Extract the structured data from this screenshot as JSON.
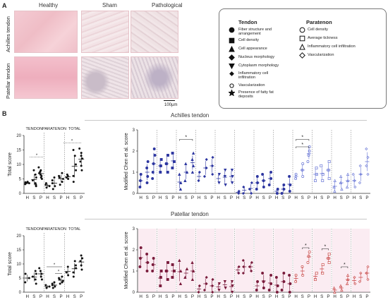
{
  "panel_a": {
    "letter": "A",
    "columns": [
      "Healthy",
      "Sham",
      "Pathological"
    ],
    "rows": [
      "Achilles tendon",
      "Patellar tendon"
    ],
    "scalebar": "100µm"
  },
  "legend": {
    "tendon_title": "Tendon",
    "tendon_items": [
      {
        "symbol": "circle-filled",
        "label": "Fiber structure and\narrangement"
      },
      {
        "symbol": "square-filled",
        "label": "Cell density"
      },
      {
        "symbol": "triangle-filled",
        "label": "Cell appearance"
      },
      {
        "symbol": "diamond-filled",
        "label": "Nucleus morphology"
      },
      {
        "symbol": "triangle-down-filled",
        "label": "Cytoplasm morphology"
      },
      {
        "symbol": "diamond-small-filled",
        "label": "Inflammatory cell\ninfiltration"
      },
      {
        "symbol": "circle-open-small",
        "label": "Vascularization"
      },
      {
        "symbol": "star-filled",
        "label": "Presence of fatty fat\ndeposits"
      }
    ],
    "paratenon_title": "Paratenon",
    "paratenon_items": [
      {
        "symbol": "circle-open",
        "label": "Cell density"
      },
      {
        "symbol": "square-open",
        "label": "Average tickness"
      },
      {
        "symbol": "triangle-open",
        "label": "Inflammatory cell infiltration"
      },
      {
        "symbol": "diamond-open",
        "label": "Vascularization"
      }
    ]
  },
  "panel_b": {
    "letter": "B",
    "achilles_title": "Achilles tendon",
    "patellar_title": "Patellar tendon",
    "total_ylabel": "Total score",
    "modified_ylabel": "Modified Chen et al. score",
    "group_headers": [
      "TENDON",
      "PARATENON",
      "TOTAL"
    ],
    "groups": [
      "H",
      "S",
      "P"
    ],
    "sig_marker": "*"
  },
  "chart_data": [
    {
      "type": "scatter",
      "name": "Achilles tendon total score",
      "ylabel": "Total score",
      "ylim": [
        0,
        20
      ],
      "yticks": [
        0,
        5,
        10,
        15,
        20
      ],
      "panels": [
        "TENDON",
        "PARATENON",
        "TOTAL"
      ],
      "categories": [
        "H",
        "S",
        "P"
      ],
      "series": [
        {
          "panel": "TENDON",
          "H": [
            3.2,
            3.5,
            3.8,
            4.0,
            3.6
          ],
          "S": [
            2.5,
            3.5,
            4.5,
            5.5,
            6.5,
            8.0,
            3.0
          ],
          "P": [
            5.0,
            5.5,
            6.0,
            6.5,
            7.0,
            7.5,
            8.0,
            9.0
          ]
        },
        {
          "panel": "PARATENON",
          "H": [
            2.0,
            2.5,
            3.0,
            3.5
          ],
          "S": [
            1.5,
            2.5,
            3.5,
            4.5,
            5.5
          ],
          "P": [
            3.0,
            4.0,
            5.0,
            5.5,
            6.0,
            7.0
          ]
        },
        {
          "panel": "TOTAL",
          "H": [
            5.0,
            5.5,
            6.0,
            6.5
          ],
          "S": [
            4.0,
            6.0,
            8.0,
            10.0,
            13.0,
            15.0
          ],
          "P": [
            8.0,
            9.5,
            11.0,
            12.0,
            13.0,
            14.0,
            15.5
          ]
        }
      ]
    },
    {
      "type": "scatter",
      "name": "Achilles tendon modified Chen et al. score",
      "ylabel": "Modified Chen et al. score",
      "ylim": [
        0,
        3
      ],
      "yticks": [
        0,
        1,
        2,
        3
      ],
      "categories": [
        "H",
        "S",
        "P"
      ],
      "groups_count": 12,
      "series": [
        {
          "H": [
            0.3,
            0.6,
            0.9
          ],
          "S": [
            0.5,
            0.8,
            1.2,
            1.5
          ],
          "P": [
            0.7,
            1.0,
            1.4,
            1.8,
            2.1
          ]
        },
        {
          "H": [
            1.0,
            1.3,
            1.6
          ],
          "S": [
            1.0,
            1.4,
            1.8
          ],
          "P": [
            1.2,
            1.5,
            1.9
          ]
        },
        {
          "H": [
            0.2,
            0.5,
            0.9
          ],
          "S": [
            0.6,
            1.0,
            1.4
          ],
          "P": [
            1.0,
            1.3,
            1.6,
            1.9
          ]
        },
        {
          "H": [
            0.6,
            1.0
          ],
          "S": [
            0.8,
            1.2,
            1.6
          ],
          "P": [
            0.9,
            1.3,
            1.7
          ]
        },
        {
          "H": [
            0.5,
            0.9
          ],
          "S": [
            0.4,
            0.8,
            1.1
          ],
          "P": [
            0.5,
            0.8,
            1.1
          ]
        },
        {
          "H": [
            0.0,
            0.1
          ],
          "S": [
            0.0,
            0.3
          ],
          "P": [
            0.0,
            0.2,
            0.5
          ]
        },
        {
          "H": [
            0.2,
            0.5,
            0.8
          ],
          "S": [
            0.3,
            0.6,
            0.9
          ],
          "P": [
            0.4,
            0.7,
            1.0
          ]
        },
        {
          "H": [
            0.0,
            0.2
          ],
          "S": [
            0.0,
            0.2,
            0.4
          ],
          "P": [
            0.1,
            0.4,
            0.8
          ]
        },
        {
          "H": [
            0.7,
            0.9
          ],
          "S": [
            0.8,
            1.1,
            1.4
          ],
          "P": [
            1.5,
            1.8,
            2.0,
            2.2
          ]
        },
        {
          "H": [
            0.6,
            0.9,
            1.2
          ],
          "S": [
            0.6,
            0.9,
            1.3
          ],
          "P": [
            0.7,
            1.1,
            1.5
          ]
        },
        {
          "H": [
            0.1,
            0.3,
            0.6
          ],
          "S": [
            0.2,
            0.5,
            0.8
          ],
          "P": [
            0.3,
            0.6,
            0.9
          ]
        },
        {
          "H": [
            0.3,
            0.6,
            0.9
          ],
          "S": [
            0.5,
            0.9,
            1.3
          ],
          "P": [
            0.9,
            1.3,
            1.7,
            2.1
          ]
        }
      ]
    },
    {
      "type": "scatter",
      "name": "Patellar tendon total score",
      "ylabel": "Total score",
      "ylim": [
        0,
        20
      ],
      "yticks": [
        0,
        5,
        10,
        15,
        20
      ],
      "panels": [
        "TENDON",
        "PARATENON",
        "TOTAL"
      ],
      "categories": [
        "H",
        "S",
        "P"
      ],
      "series": [
        {
          "panel": "TENDON",
          "H": [
            3.5,
            5.0,
            6.5
          ],
          "S": [
            3.0,
            4.5,
            5.5,
            6.5,
            7.5
          ],
          "P": [
            4.5,
            5.5,
            6.5,
            7.5,
            8.5
          ]
        },
        {
          "panel": "PARATENON",
          "H": [
            1.5,
            2.0,
            2.5
          ],
          "S": [
            1.5,
            2.0,
            2.5,
            3.0,
            3.5
          ],
          "P": [
            3.0,
            3.5,
            4.0,
            4.5,
            5.0,
            5.5
          ]
        },
        {
          "panel": "TOTAL",
          "H": [
            6.0,
            7.0,
            9.0
          ],
          "S": [
            5.5,
            7.0,
            8.5,
            9.5,
            11.0
          ],
          "P": [
            8.0,
            9.5,
            11.0,
            12.0,
            13.0
          ]
        }
      ]
    },
    {
      "type": "scatter",
      "name": "Patellar tendon modified Chen et al. score",
      "ylabel": "Modified Chen et al. score",
      "ylim": [
        0,
        3
      ],
      "yticks": [
        0,
        1,
        2,
        3
      ],
      "categories": [
        "H",
        "S",
        "P"
      ],
      "groups_count": 12,
      "series": [
        {
          "H": [
            1.2,
            1.6,
            2.1
          ],
          "S": [
            1.0,
            1.4,
            1.8
          ],
          "P": [
            1.0,
            1.3,
            1.6
          ]
        },
        {
          "H": [
            0.3,
            0.7,
            1.0
          ],
          "S": [
            0.6,
            1.0,
            1.4
          ],
          "P": [
            0.7,
            1.0,
            1.3
          ]
        },
        {
          "H": [
            0.4,
            1.0,
            1.5
          ],
          "S": [
            0.7,
            1.1
          ],
          "P": [
            0.6,
            1.0,
            1.4
          ]
        },
        {
          "H": [
            0.0,
            0.3
          ],
          "S": [
            0.1,
            0.4,
            0.7
          ],
          "P": [
            0.0,
            0.3,
            0.6
          ]
        },
        {
          "H": [
            0.1,
            0.4
          ],
          "S": [
            0.2,
            0.5
          ],
          "P": [
            0.0,
            0.3,
            0.5
          ]
        },
        {
          "H": [
            0.9,
            1.2
          ],
          "S": [
            0.9,
            1.2,
            1.5
          ],
          "P": [
            1.0,
            1.2,
            1.4
          ]
        },
        {
          "H": [
            0.1,
            0.5
          ],
          "S": [
            0.2,
            0.5,
            0.9
          ],
          "P": [
            0.1,
            0.4,
            0.8
          ]
        },
        {
          "H": [
            0.0,
            0.3,
            0.7
          ],
          "S": [
            0.1,
            0.5,
            0.9
          ],
          "P": [
            0.0,
            0.4,
            0.8
          ]
        },
        {
          "H": [
            0.5,
            0.8
          ],
          "S": [
            0.8,
            1.2
          ],
          "P": [
            1.4,
            1.7,
            1.9
          ]
        },
        {
          "H": [
            0.6,
            0.9
          ],
          "S": [
            0.9,
            1.3
          ],
          "P": [
            1.4,
            1.6,
            1.8
          ]
        },
        {
          "H": [
            0.0,
            0.2
          ],
          "S": [
            0.1,
            0.3
          ],
          "P": [
            0.4,
            0.6,
            0.8
          ]
        },
        {
          "H": [
            0.4,
            0.7
          ],
          "S": [
            0.5,
            0.9
          ],
          "P": [
            0.6,
            0.9,
            1.2
          ]
        }
      ]
    }
  ],
  "colors": {
    "achilles_series": "#2d36a0",
    "achilles_light": "#6b78d6",
    "patellar_series": "#7a1c3c",
    "patellar_light": "#c94b4b",
    "sham_tile": "#f1e6e8",
    "healthy_tile": "#f4c6cf",
    "path_tile": "#eadfe2"
  }
}
